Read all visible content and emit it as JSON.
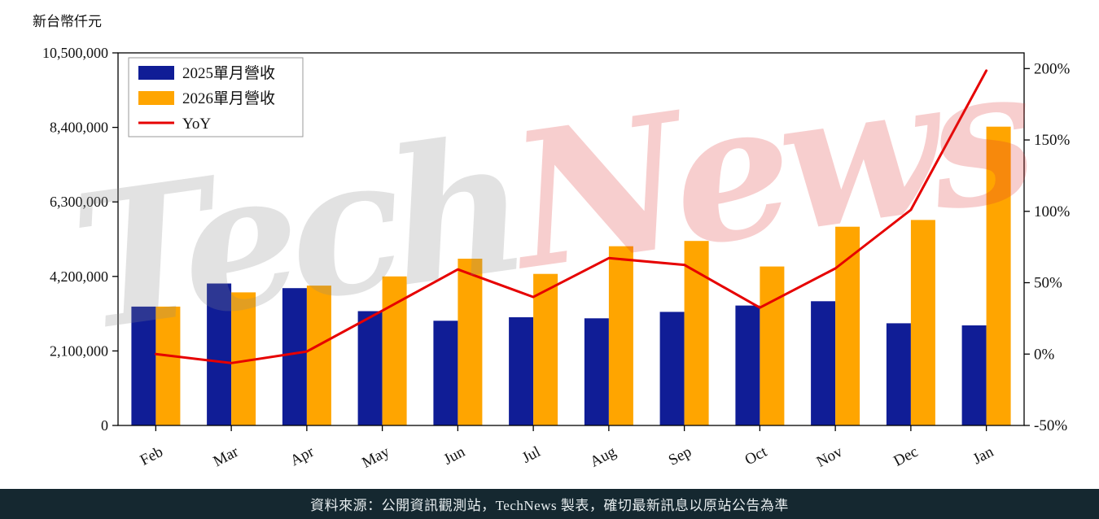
{
  "watermark": {
    "part1": "Tech",
    "part2": "News"
  },
  "footer": {
    "text": "資料來源：公開資訊觀測站，TechNews 製表，確切最新訊息以原站公告為準"
  },
  "chart_data": {
    "type": "bar+line",
    "title": "",
    "categories": [
      "Feb",
      "Mar",
      "Apr",
      "May",
      "Jun",
      "Jul",
      "Aug",
      "Sep",
      "Oct",
      "Nov",
      "Dec",
      "Jan"
    ],
    "series": [
      {
        "name": "2025單月營收",
        "kind": "bar",
        "axis": "left",
        "color": "#101d96",
        "values": [
          3350000,
          4000000,
          3870000,
          3220000,
          2950000,
          3050000,
          3020000,
          3200000,
          3380000,
          3500000,
          2880000,
          2820000
        ]
      },
      {
        "name": "2026單月營收",
        "kind": "bar",
        "axis": "left",
        "color": "#ffa500",
        "values": [
          3350000,
          3750000,
          3940000,
          4200000,
          4700000,
          4270000,
          5050000,
          5200000,
          4480000,
          5600000,
          5790000,
          8420000
        ]
      },
      {
        "name": "YoY",
        "kind": "line",
        "axis": "right",
        "color": "#e60000",
        "values": [
          0.0,
          -6.3,
          1.8,
          30.4,
          59.3,
          40.0,
          67.2,
          62.5,
          32.5,
          60.0,
          101.0,
          198.6
        ]
      }
    ],
    "left_axis": {
      "unit": "新台幣仟元",
      "range": [
        0,
        10500000
      ],
      "ticks": [
        {
          "value": 0,
          "label": "0"
        },
        {
          "value": 2100000,
          "label": "2,100,000"
        },
        {
          "value": 4200000,
          "label": "4,200,000"
        },
        {
          "value": 6300000,
          "label": "6,300,000"
        },
        {
          "value": 8400000,
          "label": "8,400,000"
        },
        {
          "value": 10500000,
          "label": "10,500,000"
        }
      ]
    },
    "right_axis": {
      "range": [
        -50,
        211
      ],
      "ticks": [
        {
          "value": -50,
          "label": "-50%"
        },
        {
          "value": 0,
          "label": "0%"
        },
        {
          "value": 50,
          "label": "50%"
        },
        {
          "value": 100,
          "label": "100%"
        },
        {
          "value": 150,
          "label": "150%"
        },
        {
          "value": 200,
          "label": "200%"
        }
      ]
    },
    "legend_position": "upper-left",
    "grid": false
  }
}
